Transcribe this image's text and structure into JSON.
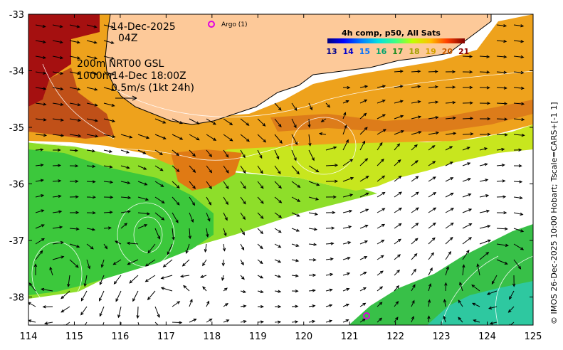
{
  "map": {
    "date": "14-Dec-2025",
    "time": "04Z",
    "depth_line1": "200m  NRT00 GSL",
    "depth_line2": "1000m14-Dec 18:00Z",
    "scale_text": "0.5m/s (1kt 24h)",
    "argo_label": "Argo (1)",
    "side_credit": "© IMOS 26-Dec-2025 10:00 Hobart; Tscale=CARS+[-1 1]",
    "marker_color": "#e100e1",
    "lon_ticks": [
      "114",
      "115",
      "116",
      "117",
      "118",
      "119",
      "120",
      "121",
      "122",
      "123",
      "124",
      "125"
    ],
    "lat_ticks": [
      "-33",
      "-34",
      "-35",
      "-36",
      "-37",
      "-38"
    ],
    "colors": {
      "land": "#fdc999",
      "no_data": "#ffffff"
    }
  },
  "legend": {
    "title": "4h comp, p50, All Sats",
    "ticks": [
      "13",
      "14",
      "15",
      "16",
      "17",
      "18",
      "19",
      "20",
      "21"
    ],
    "tick_colors": [
      "#00008b",
      "#0000cd",
      "#0070ff",
      "#00a36c",
      "#1e8c1e",
      "#a0a000",
      "#d2a000",
      "#c85a00",
      "#8b0000"
    ]
  }
}
